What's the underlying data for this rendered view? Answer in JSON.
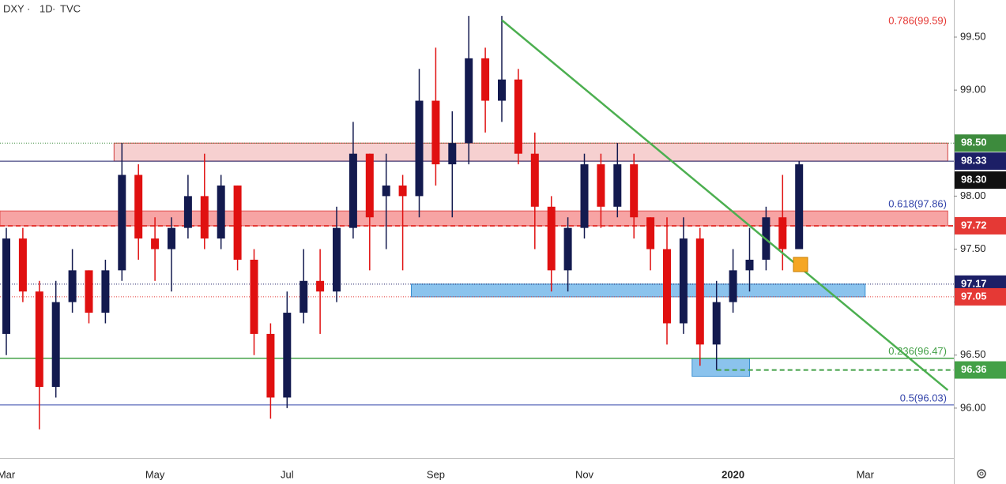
{
  "chart_data": {
    "type": "candlestick",
    "header": [
      "DXY",
      "1D",
      "TVC"
    ],
    "categories": [
      "Mar",
      null,
      null,
      null,
      null,
      null,
      null,
      null,
      null,
      "May",
      null,
      null,
      null,
      null,
      null,
      null,
      null,
      "Jul",
      null,
      null,
      null,
      null,
      null,
      null,
      null,
      null,
      "Sep",
      null,
      null,
      null,
      null,
      null,
      null,
      null,
      null,
      "Nov",
      null,
      null,
      null,
      null,
      null,
      null,
      null,
      null,
      "2020",
      null,
      null,
      null,
      null,
      null,
      null,
      null,
      "Mar",
      null,
      null,
      null,
      null,
      null
    ],
    "open": [
      96.7,
      97.6,
      97.1,
      96.2,
      97.0,
      97.3,
      96.9,
      97.3,
      98.2,
      97.6,
      97.5,
      97.7,
      98.0,
      97.6,
      98.1,
      97.4,
      96.7,
      96.1,
      96.9,
      97.2,
      97.1,
      97.7,
      98.4,
      98.0,
      98.1,
      98.0,
      98.9,
      98.3,
      98.5,
      99.3,
      98.9,
      99.1,
      98.4,
      97.9,
      97.3,
      97.7,
      98.3,
      97.9,
      98.3,
      97.8,
      97.5,
      96.8,
      97.6,
      96.6,
      97.0,
      97.3,
      97.4,
      97.8,
      97.5,
      null,
      null,
      null,
      null,
      null,
      null,
      null,
      null,
      null
    ],
    "high": [
      97.7,
      97.7,
      97.2,
      97.2,
      97.5,
      97.3,
      97.4,
      98.5,
      98.3,
      97.8,
      97.8,
      98.2,
      98.4,
      98.2,
      98.1,
      97.5,
      96.8,
      97.1,
      97.5,
      97.5,
      97.9,
      98.7,
      98.4,
      98.4,
      98.2,
      99.2,
      99.4,
      98.8,
      99.7,
      99.4,
      99.7,
      99.2,
      98.6,
      98.0,
      97.8,
      98.4,
      98.4,
      98.5,
      98.4,
      97.8,
      97.8,
      97.8,
      97.7,
      97.2,
      97.5,
      97.7,
      97.9,
      98.2,
      98.33,
      null,
      null,
      null,
      null,
      null,
      null,
      null,
      null,
      null
    ],
    "low": [
      96.5,
      97.0,
      95.8,
      96.1,
      96.9,
      96.8,
      96.8,
      97.2,
      97.4,
      97.2,
      97.1,
      97.6,
      97.5,
      97.5,
      97.3,
      96.5,
      95.9,
      96.0,
      96.8,
      96.7,
      97.0,
      97.6,
      97.3,
      97.5,
      97.3,
      97.8,
      98.1,
      97.8,
      98.3,
      98.6,
      98.7,
      98.3,
      97.5,
      97.1,
      97.1,
      97.6,
      97.7,
      97.8,
      97.6,
      97.3,
      96.6,
      96.7,
      96.4,
      96.36,
      96.9,
      97.1,
      97.3,
      97.3,
      97.5,
      null,
      null,
      null,
      null,
      null,
      null,
      null,
      null,
      null
    ],
    "close": [
      97.6,
      97.1,
      96.2,
      97.0,
      97.3,
      96.9,
      97.3,
      98.2,
      97.6,
      97.5,
      97.7,
      98.0,
      97.6,
      98.1,
      97.4,
      96.7,
      96.1,
      96.9,
      97.2,
      97.1,
      97.7,
      98.4,
      97.8,
      98.1,
      98.0,
      98.9,
      98.3,
      98.5,
      99.3,
      98.9,
      99.1,
      98.4,
      97.9,
      97.3,
      97.7,
      98.3,
      97.9,
      98.3,
      97.8,
      97.5,
      96.8,
      97.6,
      96.6,
      97.0,
      97.3,
      97.4,
      97.8,
      97.5,
      98.3,
      null,
      null,
      null,
      null,
      null,
      null,
      null,
      null,
      null
    ],
    "up_color": "#131a4f",
    "down_color": "#e01010",
    "ylim": [
      95.53,
      99.85
    ],
    "yticks": [
      {
        "value": 96,
        "label": "96.00"
      },
      {
        "value": 96.5,
        "label": "96.50"
      },
      {
        "value": 97,
        "label": "97.00"
      },
      {
        "value": 97.5,
        "label": "97.50"
      },
      {
        "value": 98,
        "label": "98.00"
      },
      {
        "value": 98.5,
        "label": "98.50"
      },
      {
        "value": 99,
        "label": "99.00"
      },
      {
        "value": 99.5,
        "label": "99.50"
      }
    ],
    "zones": [
      {
        "from": 98.33,
        "to": 98.5,
        "start": 7,
        "end": 57,
        "color": "rgba(230,120,120,0.35)",
        "border": "#d04040"
      },
      {
        "from": 97.72,
        "to": 97.86,
        "start": 0,
        "end": 57,
        "color": "rgba(240,90,90,0.55)",
        "border": "#e05050"
      },
      {
        "from": 97.05,
        "to": 97.17,
        "start": 25,
        "end": 52,
        "color": "rgba(90,170,230,0.7)",
        "border": "#3a8fd0"
      },
      {
        "from": 96.3,
        "to": 96.47,
        "start": 42,
        "end": 45,
        "color": "rgba(90,170,230,0.7)",
        "border": "#3a8fd0"
      }
    ],
    "levels": [
      {
        "value": 98.5,
        "label": "98.50",
        "color": "#3d8b3d"
      },
      {
        "value": 98.33,
        "label": "98.33",
        "color": "#1c1f66"
      },
      {
        "value": 98.3,
        "label": "98.30",
        "color": "#111111"
      },
      {
        "value": 97.72,
        "label": "97.72",
        "color": "#e53935"
      },
      {
        "value": 97.17,
        "label": "97.17",
        "color": "#1c1f66"
      },
      {
        "value": 97.05,
        "label": "97.05",
        "color": "#e53935"
      },
      {
        "value": 96.36,
        "label": "96.36",
        "color": "#43a047"
      }
    ],
    "fib_labels": [
      {
        "value": 99.59,
        "label": "0.786(99.59)",
        "color": "#e53935"
      },
      {
        "value": 97.86,
        "label": "0.618(97.86)",
        "color": "#3344aa"
      },
      {
        "value": 96.47,
        "label": "0.236(96.47)",
        "color": "#43a047"
      },
      {
        "value": 96.03,
        "label": "0.5(96.03)",
        "color": "#3344aa"
      }
    ],
    "trendline": {
      "from": 99.66,
      "to": 96.17,
      "start": 30,
      "end": 57,
      "color": "#4caf50"
    }
  }
}
